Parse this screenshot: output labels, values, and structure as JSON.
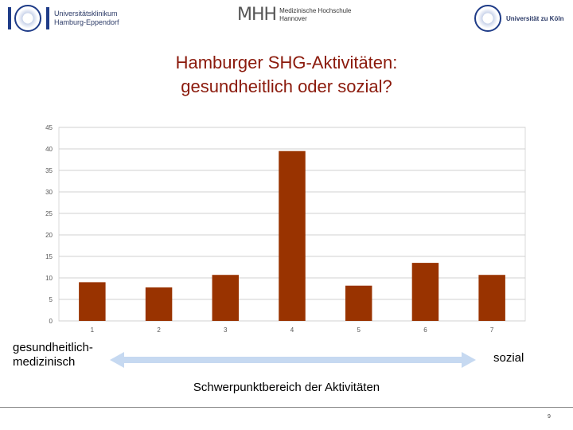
{
  "logos": {
    "uke_text": [
      "Universitätsklinikum",
      "Hamburg-Eppendorf"
    ],
    "mhh_mark": "MHH",
    "mhh_text": [
      "Medizinische Hochschule",
      "Hannover"
    ],
    "koeln_text": "Universität zu Köln"
  },
  "slide": {
    "title_line1": "Hamburger SHG-Aktivitäten:",
    "title_line2": "gesundheitlich oder sozial?",
    "left_label_line1": "gesundheitlich-",
    "left_label_line2": "medizinisch",
    "right_label": "sozial",
    "axis_caption": "Schwerpunktbereich der Aktivitäten",
    "page_number": "9"
  },
  "colors": {
    "bar": "#993300",
    "title": "#8b1a0c",
    "arrow": "#c6d9f1"
  },
  "chart_data": {
    "type": "bar",
    "categories": [
      "1",
      "2",
      "3",
      "4",
      "5",
      "6",
      "7"
    ],
    "values": [
      9,
      7.8,
      10.7,
      39.5,
      8.2,
      13.5,
      10.7
    ],
    "title": "",
    "xlabel": "",
    "ylabel": "",
    "ylim": [
      0,
      45
    ],
    "yticks": [
      0,
      5,
      10,
      15,
      20,
      25,
      30,
      35,
      40,
      45
    ],
    "grid": true,
    "legend": "none"
  }
}
